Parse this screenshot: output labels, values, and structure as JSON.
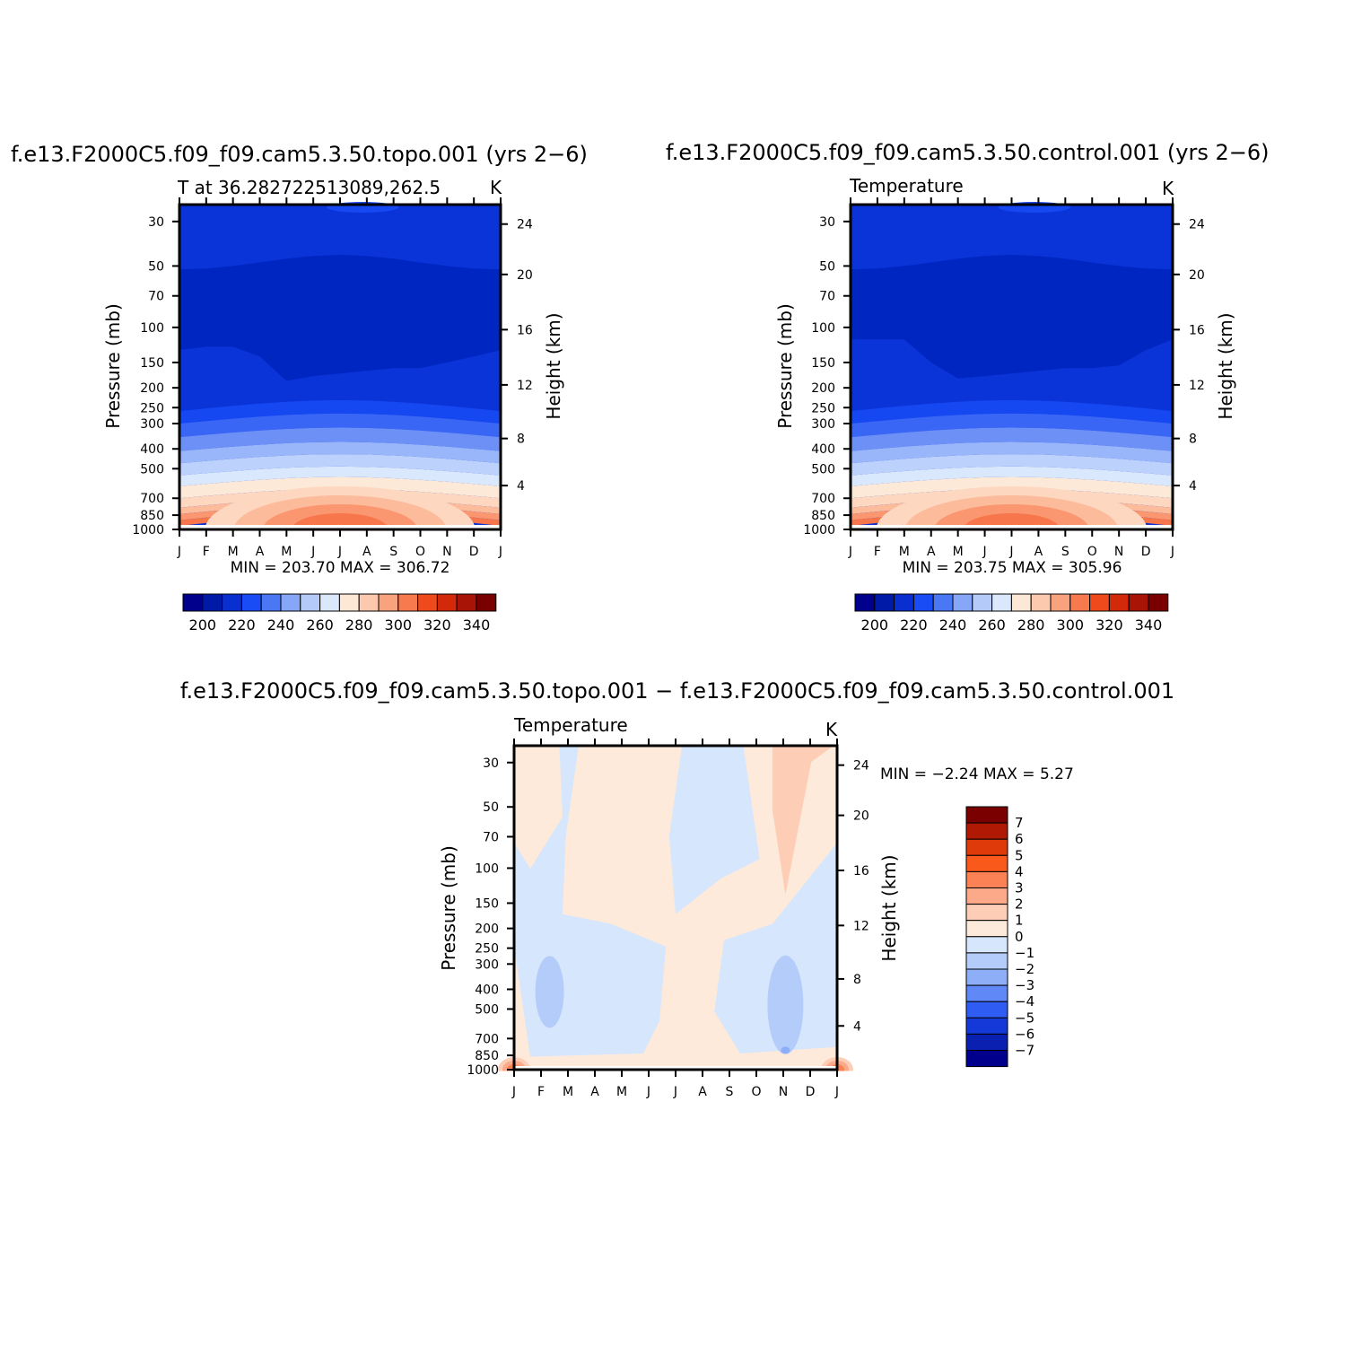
{
  "chart_data": [
    {
      "id": "topo",
      "type": "heatmap",
      "title": "f.e13.F2000C5.f09_f09.cam5.3.50.topo.001 (yrs 2−6)",
      "subtitle": "T at 36.282722513089,262.5",
      "units": "K",
      "xlabel": "",
      "ylabel": "Pressure (mb)",
      "ylabel_right": "Height (km)",
      "x_ticks": [
        "J",
        "F",
        "M",
        "A",
        "M",
        "J",
        "J",
        "A",
        "S",
        "O",
        "N",
        "D",
        "J"
      ],
      "y_ticks": [
        30,
        50,
        70,
        100,
        150,
        200,
        250,
        300,
        400,
        500,
        700,
        850,
        1000
      ],
      "y_ticks_right": [
        4,
        8,
        12,
        16,
        20,
        24
      ],
      "ylim": [
        1000,
        25
      ],
      "stats_text": "MIN = 203.70 MAX = 306.72",
      "min": 203.7,
      "max": 306.72,
      "contour_levels": [
        195,
        200,
        205,
        210,
        215,
        220,
        225,
        230,
        235,
        240,
        245,
        250,
        255,
        260,
        265,
        270,
        275,
        280,
        285,
        290,
        295,
        300,
        305
      ],
      "colorbar_labels": [
        "200",
        "220",
        "240",
        "260",
        "280",
        "300",
        "320",
        "340"
      ],
      "tropopause_hpa": [
        130,
        125,
        125,
        140,
        185,
        175,
        170,
        165,
        160,
        160,
        150,
        140,
        130
      ],
      "surface_temp_K": [
        280,
        283,
        288,
        293,
        298,
        303,
        306.7,
        305,
        300,
        293,
        287,
        282,
        280
      ]
    },
    {
      "id": "control",
      "type": "heatmap",
      "title": "f.e13.F2000C5.f09_f09.cam5.3.50.control.001 (yrs 2−6)",
      "subtitle": "Temperature",
      "units": "K",
      "xlabel": "",
      "ylabel": "Pressure (mb)",
      "ylabel_right": "Height (km)",
      "x_ticks": [
        "J",
        "F",
        "M",
        "A",
        "M",
        "J",
        "J",
        "A",
        "S",
        "O",
        "N",
        "D",
        "J"
      ],
      "y_ticks": [
        30,
        50,
        70,
        100,
        150,
        200,
        250,
        300,
        400,
        500,
        700,
        850,
        1000
      ],
      "y_ticks_right": [
        4,
        8,
        12,
        16,
        20,
        24
      ],
      "ylim": [
        1000,
        25
      ],
      "stats_text": "MIN = 203.75 MAX = 305.96",
      "min": 203.75,
      "max": 305.96,
      "contour_levels": [
        195,
        200,
        205,
        210,
        215,
        220,
        225,
        230,
        235,
        240,
        245,
        250,
        255,
        260,
        265,
        270,
        275,
        280,
        285,
        290,
        295,
        300,
        305
      ],
      "colorbar_labels": [
        "200",
        "220",
        "240",
        "260",
        "280",
        "300",
        "320",
        "340"
      ],
      "tropopause_hpa": [
        115,
        115,
        115,
        150,
        180,
        175,
        170,
        165,
        160,
        160,
        155,
        130,
        115
      ],
      "surface_temp_K": [
        280,
        283,
        288,
        293,
        298,
        303,
        306,
        305,
        300,
        293,
        287,
        282,
        280
      ]
    },
    {
      "id": "diff",
      "type": "heatmap",
      "title": "f.e13.F2000C5.f09_f09.cam5.3.50.topo.001 − f.e13.F2000C5.f09_f09.cam5.3.50.control.001",
      "subtitle": "Temperature",
      "units": "K",
      "xlabel": "",
      "ylabel": "Pressure (mb)",
      "ylabel_right": "Height (km)",
      "x_ticks": [
        "J",
        "F",
        "M",
        "A",
        "M",
        "J",
        "J",
        "A",
        "S",
        "O",
        "N",
        "D",
        "J"
      ],
      "y_ticks": [
        30,
        50,
        70,
        100,
        150,
        200,
        250,
        300,
        400,
        500,
        700,
        850,
        1000
      ],
      "y_ticks_right": [
        4,
        8,
        12,
        16,
        20,
        24
      ],
      "ylim": [
        1000,
        25
      ],
      "stats_text": "MIN = −2.24 MAX = 5.27",
      "min": -2.24,
      "max": 5.27,
      "contour_levels": [
        -7,
        -6,
        -5,
        -4,
        -3,
        -2,
        -1,
        0,
        1,
        2,
        3,
        4,
        5,
        6,
        7
      ],
      "colorbar_labels": [
        "7",
        "6",
        "5",
        "4",
        "3",
        "2",
        "1",
        "0",
        "−1",
        "−2",
        "−3",
        "−4",
        "−5",
        "−6",
        "−7"
      ]
    }
  ],
  "colors": {
    "abs_palette": [
      "#00008c",
      "#001aa8",
      "#0a2fd0",
      "#1a4cf5",
      "#4a78f5",
      "#86a6f8",
      "#b4caf9",
      "#dbe8fc",
      "#fde8d6",
      "#fcc9ae",
      "#f9a27e",
      "#f77a4f",
      "#ef4a1c",
      "#d2290a",
      "#a81405",
      "#7a0000"
    ],
    "abs_fill": [
      "#0026c2",
      "#0a34d8",
      "#1648f2",
      "#3a66f6",
      "#6d90f7",
      "#98b6f9",
      "#bcd1fb",
      "#dae8fd",
      "#fde9d8",
      "#fdd7bf",
      "#fcbb9b",
      "#fa9670",
      "#f7764b"
    ],
    "diff_palette": [
      "#7a0000",
      "#b01a05",
      "#df3a0a",
      "#f95a1c",
      "#fa8254",
      "#fca98a",
      "#fdcdb6",
      "#feeadb",
      "#d6e6fc",
      "#b3ccfa",
      "#8eaef8",
      "#6088f6",
      "#2f5cf2",
      "#1538d8",
      "#0a20b0",
      "#00008c"
    ]
  }
}
